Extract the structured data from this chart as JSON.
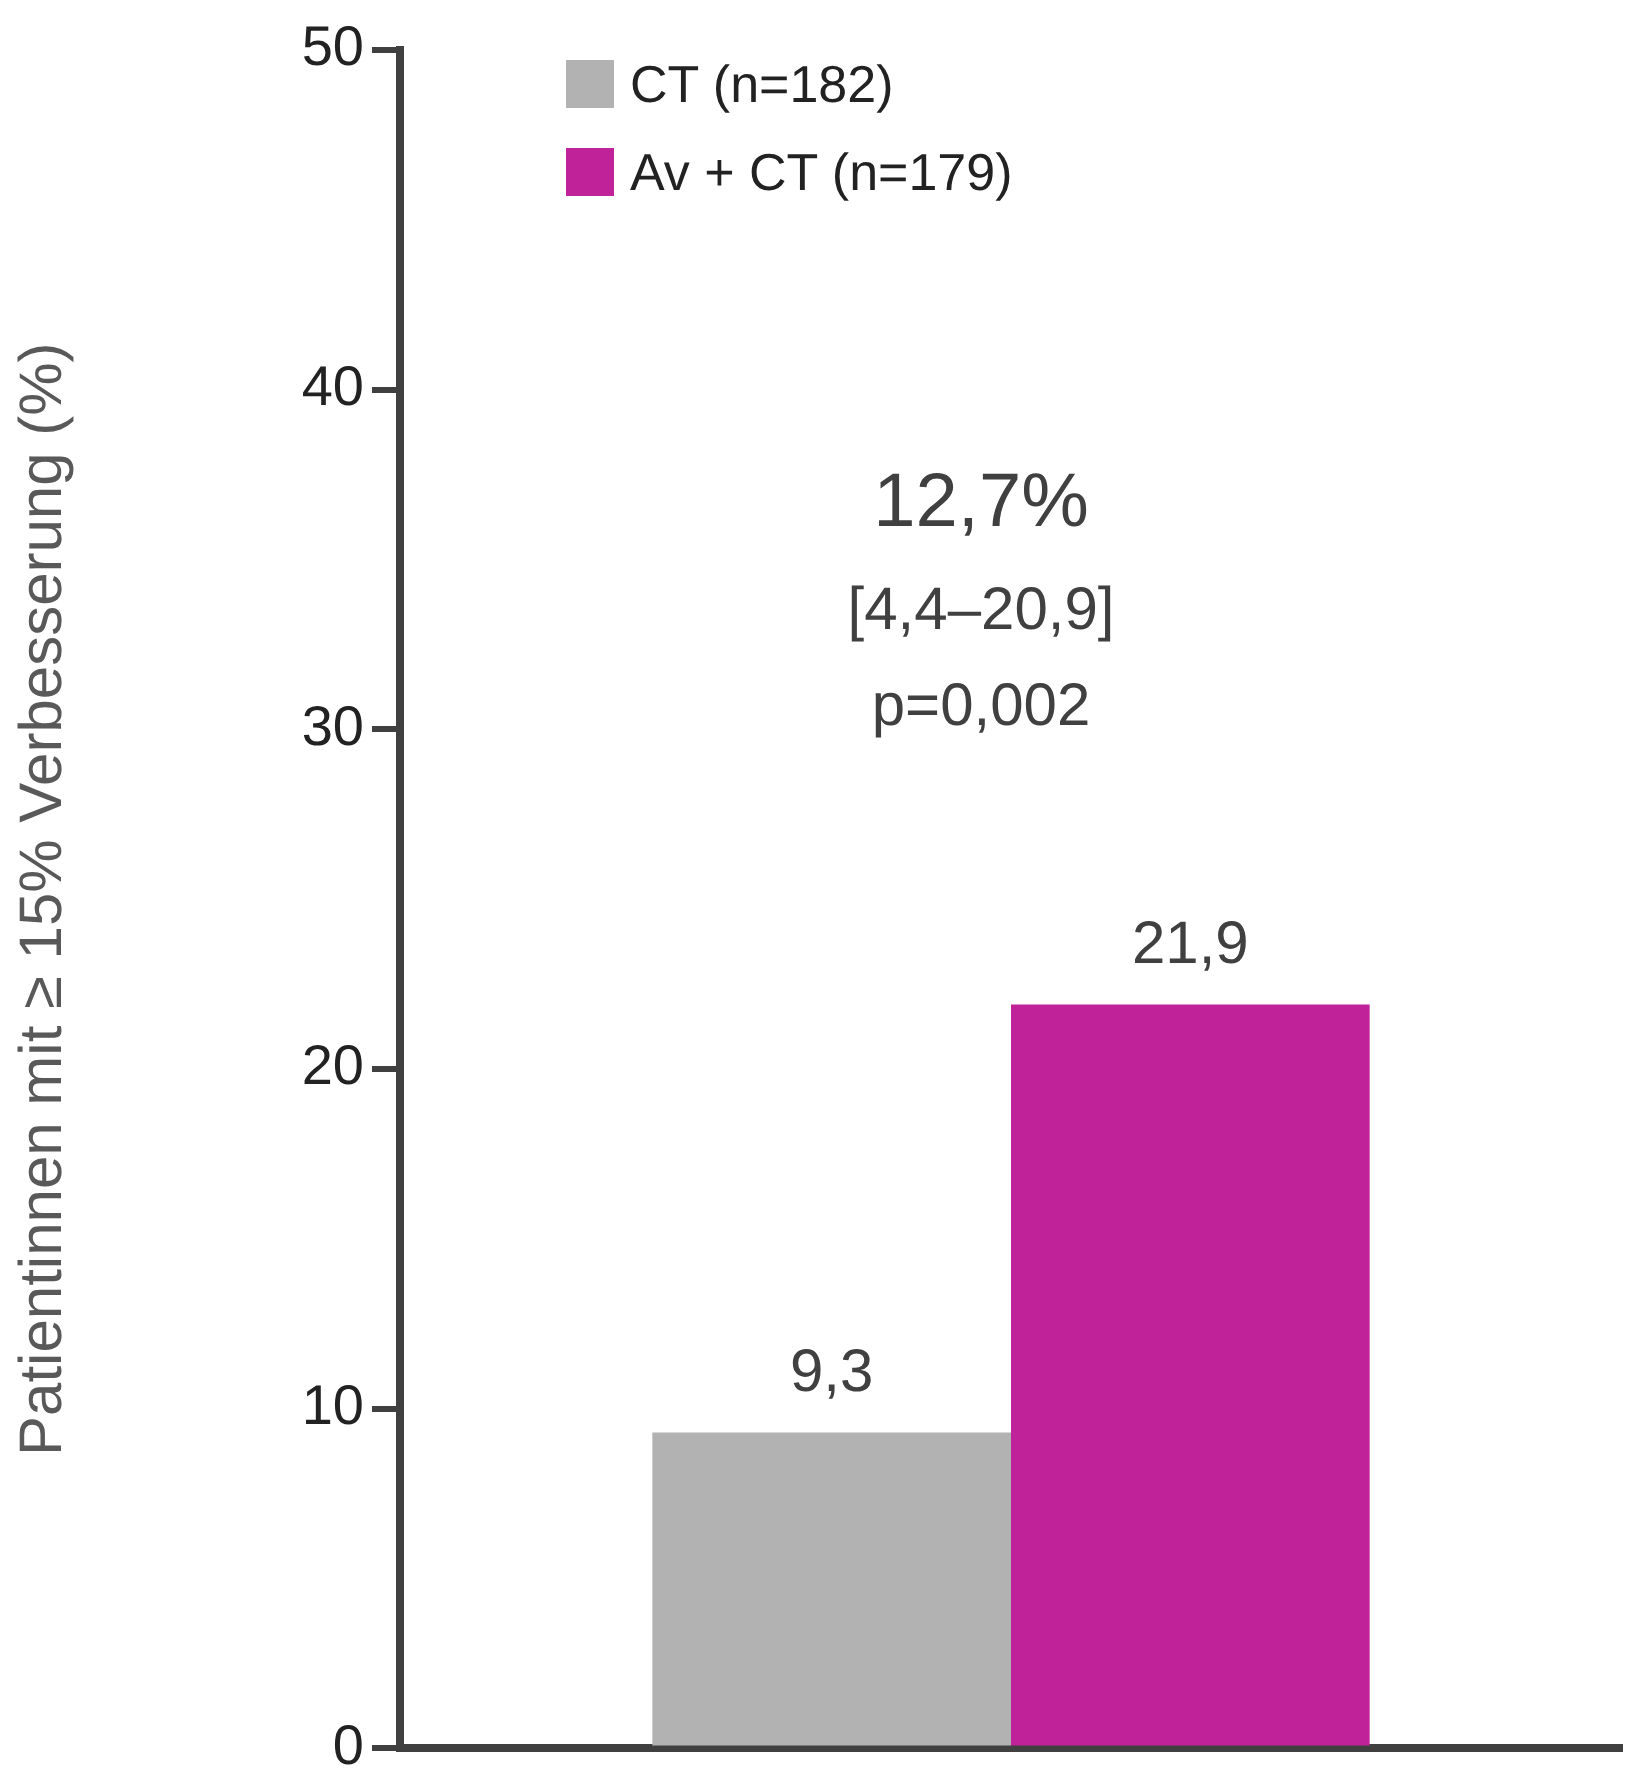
{
  "chart_data": {
    "type": "bar",
    "ylabel": "Patientinnen mit ≥ 15% Verbesserung (%)",
    "categories": [
      null
    ],
    "series": [
      {
        "name": "CT (n=182)",
        "color": "#b2b2b2",
        "values": [
          9.3
        ],
        "value_labels": [
          "9,3"
        ]
      },
      {
        "name": "Av + CT (n=179)",
        "color": "#c0229a",
        "values": [
          21.9
        ],
        "value_labels": [
          "21,9"
        ]
      }
    ],
    "ylim": [
      0,
      50
    ],
    "yticks": [
      0,
      10,
      20,
      30,
      40,
      50
    ],
    "grid": false,
    "legend": "top left",
    "annotations": [
      "12,7%",
      "[4,4–20,9]",
      "p=0,002"
    ]
  }
}
